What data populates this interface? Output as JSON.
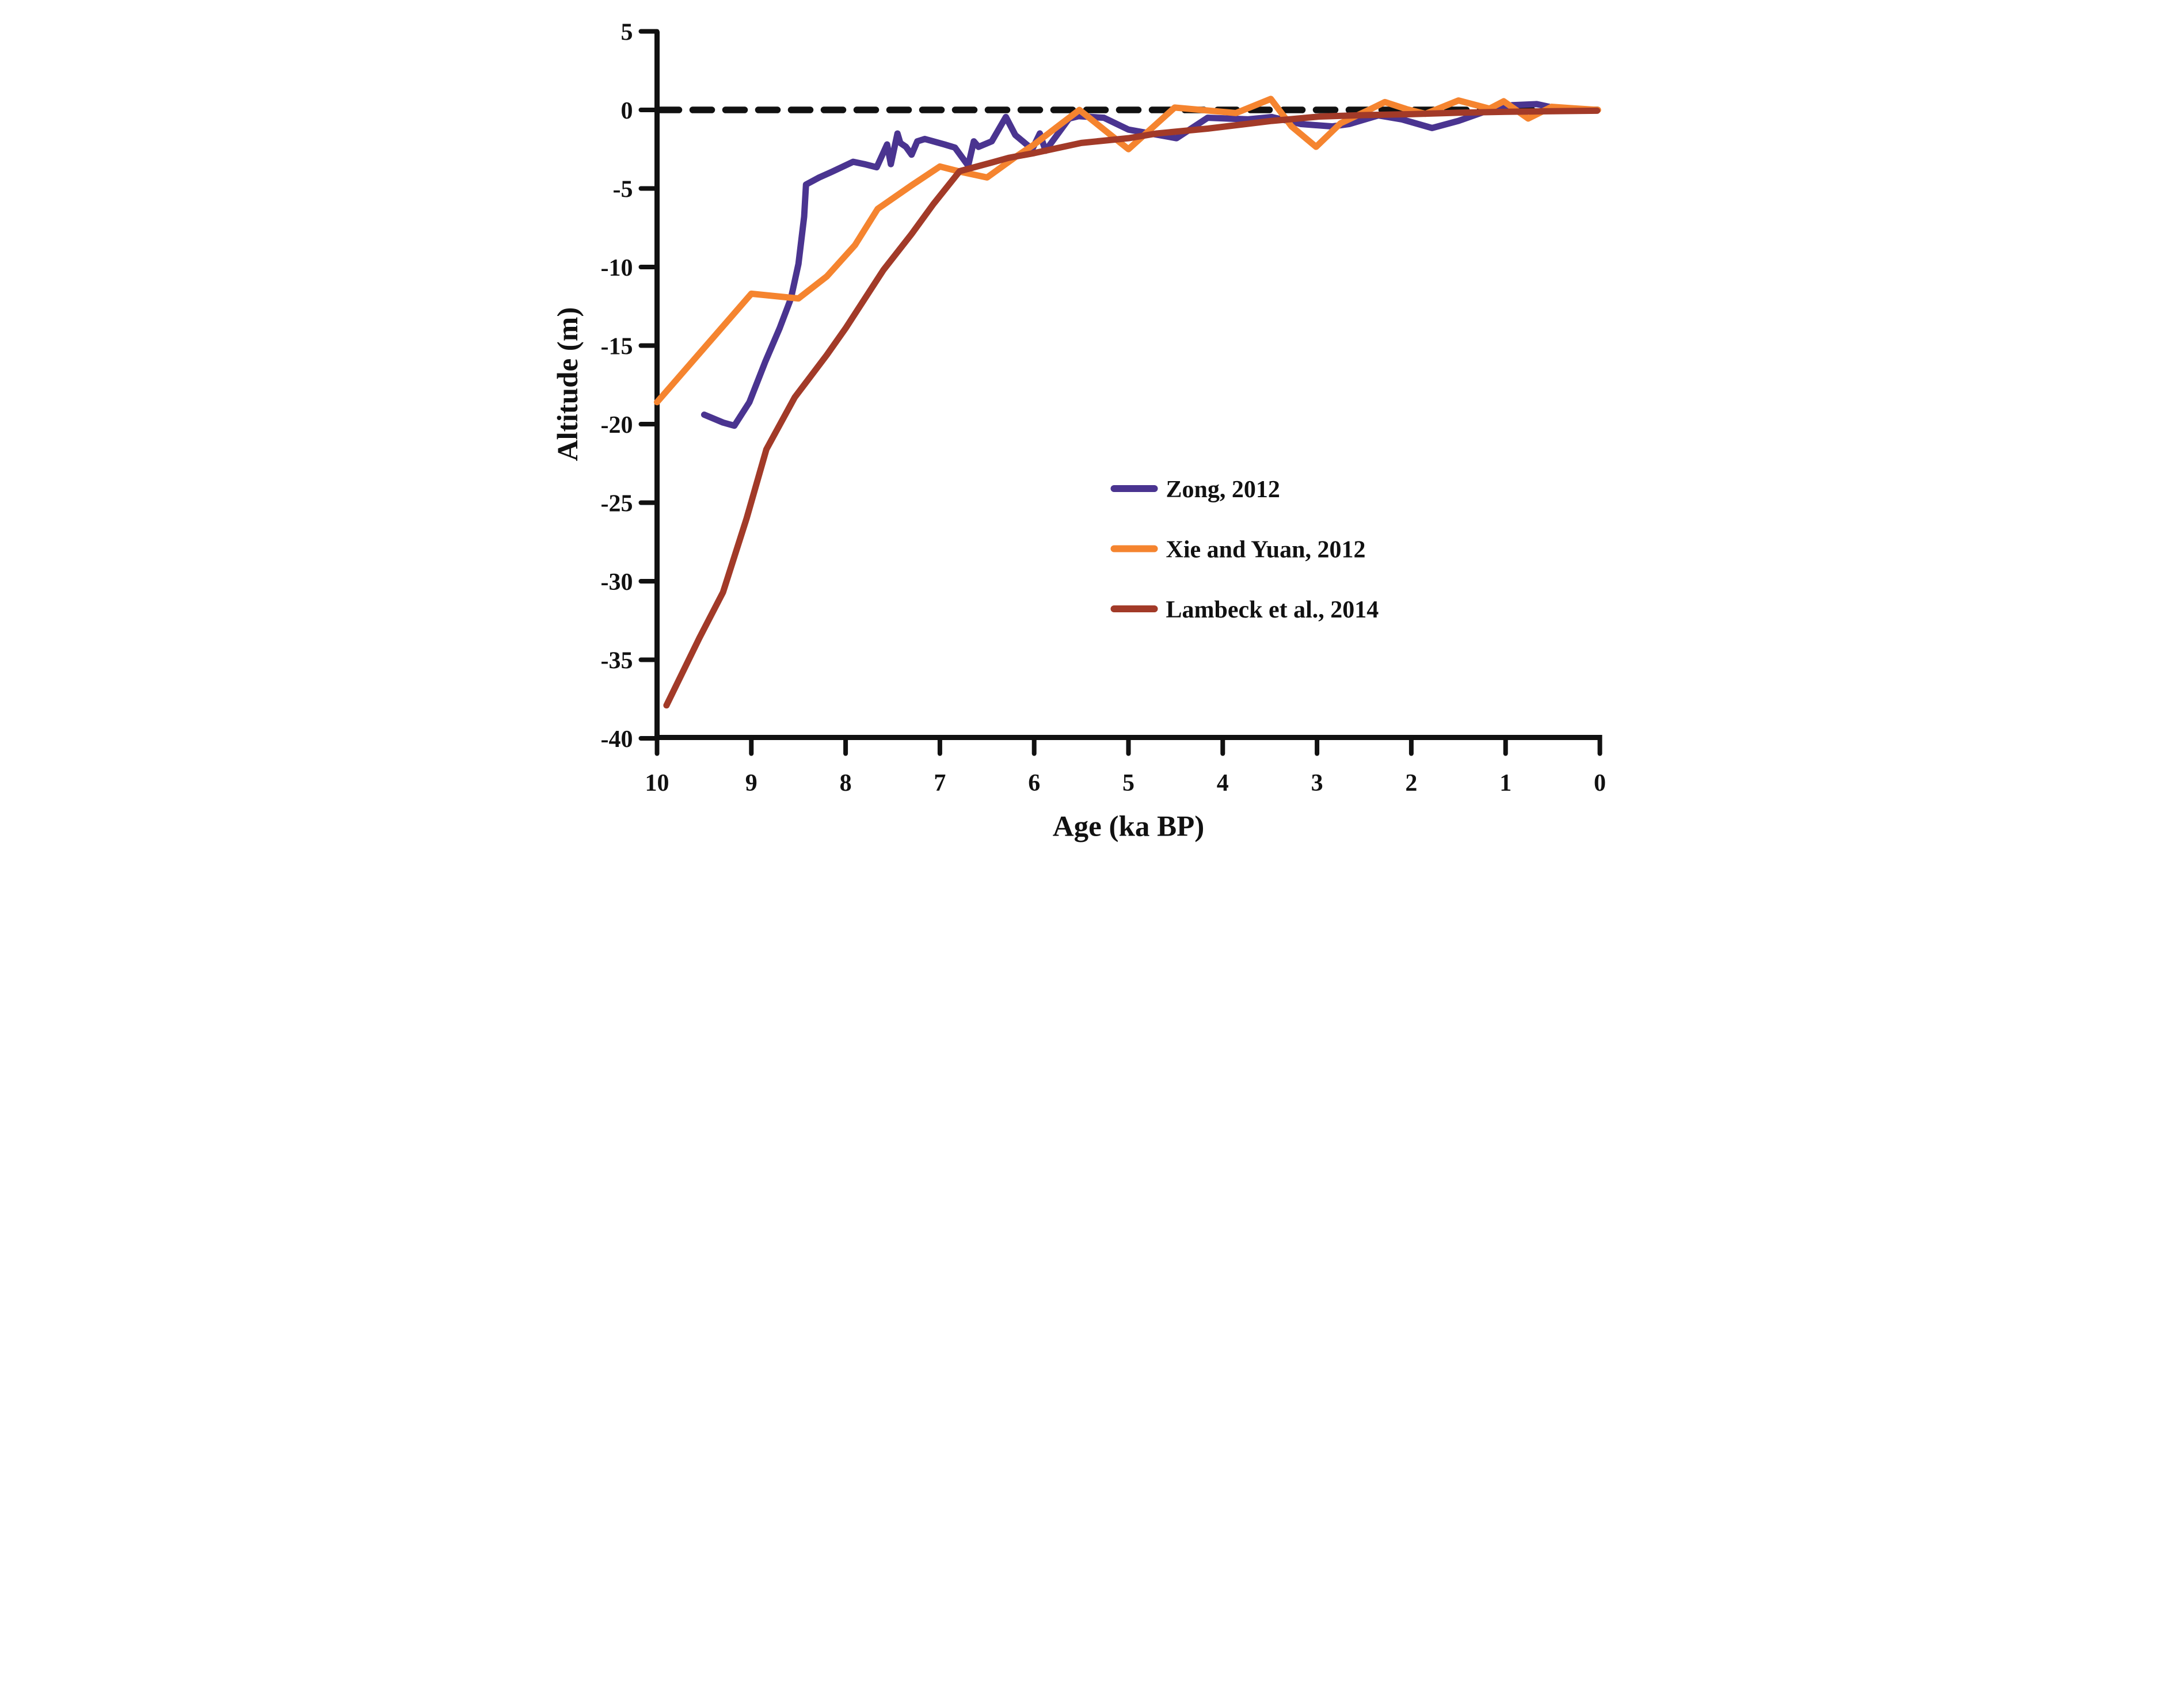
{
  "chart_data": {
    "type": "line",
    "title": "",
    "xlabel": "Age (ka BP)",
    "ylabel": "Altitude (m)",
    "xlim": [
      10,
      0
    ],
    "ylim": [
      -40,
      5
    ],
    "x_axis_reversed": true,
    "grid": false,
    "x_ticks": [
      10,
      9,
      8,
      7,
      6,
      5,
      4,
      3,
      2,
      1,
      0
    ],
    "y_ticks": [
      5,
      0,
      -5,
      -10,
      -15,
      -20,
      -25,
      -30,
      -35,
      -40
    ],
    "zero_reference_line": {
      "value": 0,
      "style": "dashed",
      "color": "#111111"
    },
    "axis_color": "#111111",
    "legend_position": "inside-right-middle",
    "series": [
      {
        "name": "Zong,  2012",
        "color": "#4a3490",
        "points": [
          [
            9.5,
            -19.4
          ],
          [
            9.3,
            -19.9
          ],
          [
            9.18,
            -20.1
          ],
          [
            9.02,
            -18.6
          ],
          [
            8.85,
            -16.0
          ],
          [
            8.7,
            -13.9
          ],
          [
            8.58,
            -12.0
          ],
          [
            8.5,
            -9.8
          ],
          [
            8.44,
            -6.8
          ],
          [
            8.42,
            -4.75
          ],
          [
            8.28,
            -4.3
          ],
          [
            8.15,
            -3.95
          ],
          [
            7.92,
            -3.3
          ],
          [
            7.8,
            -3.45
          ],
          [
            7.67,
            -3.65
          ],
          [
            7.56,
            -2.2
          ],
          [
            7.52,
            -3.45
          ],
          [
            7.45,
            -1.5
          ],
          [
            7.42,
            -2.1
          ],
          [
            7.36,
            -2.35
          ],
          [
            7.3,
            -2.85
          ],
          [
            7.24,
            -2.0
          ],
          [
            7.16,
            -1.85
          ],
          [
            6.95,
            -2.2
          ],
          [
            6.84,
            -2.4
          ],
          [
            6.7,
            -3.55
          ],
          [
            6.64,
            -2.0
          ],
          [
            6.59,
            -2.35
          ],
          [
            6.45,
            -2.0
          ],
          [
            6.3,
            -0.45
          ],
          [
            6.2,
            -1.6
          ],
          [
            6.02,
            -2.5
          ],
          [
            5.94,
            -1.5
          ],
          [
            5.88,
            -2.6
          ],
          [
            5.63,
            -0.55
          ],
          [
            5.53,
            -0.4
          ],
          [
            5.26,
            -0.5
          ],
          [
            5.0,
            -1.25
          ],
          [
            4.49,
            -1.8
          ],
          [
            4.16,
            -0.5
          ],
          [
            3.73,
            -0.6
          ],
          [
            3.48,
            -0.45
          ],
          [
            3.17,
            -0.9
          ],
          [
            2.84,
            -1.05
          ],
          [
            2.66,
            -0.9
          ],
          [
            2.35,
            -0.35
          ],
          [
            2.1,
            -0.6
          ],
          [
            1.78,
            -1.15
          ],
          [
            1.5,
            -0.7
          ],
          [
            1.17,
            0.0
          ],
          [
            0.93,
            0.3
          ],
          [
            0.67,
            0.37
          ],
          [
            0.54,
            0.2
          ]
        ]
      },
      {
        "name": "Xie and Yuan,  2012",
        "color": "#f5842f",
        "points": [
          [
            10.0,
            -18.6
          ],
          [
            9.0,
            -11.7
          ],
          [
            8.5,
            -12.0
          ],
          [
            8.2,
            -10.6
          ],
          [
            7.9,
            -8.6
          ],
          [
            7.66,
            -6.3
          ],
          [
            7.3,
            -4.8
          ],
          [
            7.0,
            -3.6
          ],
          [
            6.77,
            -3.95
          ],
          [
            6.5,
            -4.3
          ],
          [
            6.2,
            -3.0
          ],
          [
            6.0,
            -2.2
          ],
          [
            5.74,
            -1.0
          ],
          [
            5.52,
            0.0
          ],
          [
            5.0,
            -2.5
          ],
          [
            4.51,
            0.15
          ],
          [
            4.19,
            -0.02
          ],
          [
            3.86,
            -0.2
          ],
          [
            3.49,
            0.7
          ],
          [
            3.27,
            -1.05
          ],
          [
            3.01,
            -2.35
          ],
          [
            2.75,
            -0.85
          ],
          [
            2.45,
            0.0
          ],
          [
            2.28,
            0.5
          ],
          [
            2.05,
            0.05
          ],
          [
            1.85,
            -0.25
          ],
          [
            1.5,
            0.6
          ],
          [
            1.17,
            0.08
          ],
          [
            1.02,
            0.55
          ],
          [
            0.76,
            -0.55
          ],
          [
            0.51,
            0.2
          ],
          [
            0.28,
            0.1
          ],
          [
            0.02,
            0.0
          ]
        ]
      },
      {
        "name": "Lambeck et al.,  2014",
        "color": "#a23a28",
        "points": [
          [
            9.9,
            -37.9
          ],
          [
            9.55,
            -33.6
          ],
          [
            9.3,
            -30.7
          ],
          [
            9.05,
            -26.0
          ],
          [
            8.84,
            -21.6
          ],
          [
            8.54,
            -18.3
          ],
          [
            8.2,
            -15.6
          ],
          [
            8.0,
            -13.9
          ],
          [
            7.6,
            -10.2
          ],
          [
            7.3,
            -7.9
          ],
          [
            7.07,
            -6.0
          ],
          [
            6.79,
            -3.9
          ],
          [
            6.45,
            -3.35
          ],
          [
            6.27,
            -3.05
          ],
          [
            6.0,
            -2.75
          ],
          [
            5.5,
            -2.1
          ],
          [
            5.0,
            -1.8
          ],
          [
            4.7,
            -1.5
          ],
          [
            4.16,
            -1.19
          ],
          [
            3.48,
            -0.7
          ],
          [
            2.97,
            -0.42
          ],
          [
            2.5,
            -0.33
          ],
          [
            2.0,
            -0.27
          ],
          [
            1.5,
            -0.18
          ],
          [
            1.0,
            -0.12
          ],
          [
            0.5,
            -0.08
          ],
          [
            0.03,
            -0.05
          ]
        ]
      }
    ]
  }
}
